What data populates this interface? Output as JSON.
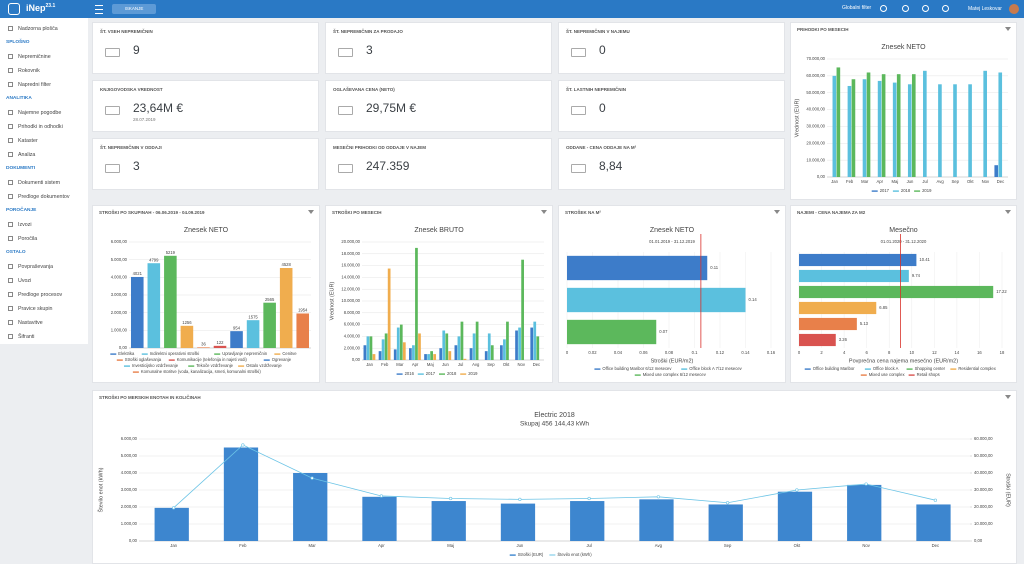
{
  "topbar": {
    "logo": "iNep",
    "version": "23.1",
    "search": "ISKANJE",
    "global_filter": "Globalni filter",
    "user": "Matej Leskovar"
  },
  "sidebar": {
    "home": "Nadzorna plošča",
    "sections": [
      {
        "title": "SPLOŠNO",
        "items": [
          "Nepremičnine",
          "Rokovnik",
          "Napredni filter"
        ]
      },
      {
        "title": "ANALITIKA",
        "items": [
          "Najemne pogodbe",
          "Prihodki in odhodki",
          "Kataster",
          "Analiza"
        ]
      },
      {
        "title": "DOKUMENTI",
        "items": [
          "Dokumenti sistem",
          "Predloge dokumentov"
        ]
      },
      {
        "title": "POROČANJE",
        "items": [
          "Izvozi",
          "Poročila"
        ]
      },
      {
        "title": "OSTALO",
        "items": [
          "Povpraševanja",
          "Uvozi",
          "Predloge procesov",
          "Pravice skupin",
          "Nastavitve",
          "Šifranti"
        ]
      }
    ]
  },
  "cards": [
    {
      "title": "ŠT. VSEH NEPREMIČNIN",
      "value": "9"
    },
    {
      "title": "ŠT. NEPREMIČNIN ZA PRODAJO",
      "value": "3"
    },
    {
      "title": "ŠT. NEPREMIČNIN V NAJEMU",
      "value": "0"
    },
    {
      "title": "KNJIGOVODSKA VREDNOST",
      "value": "23,64M €",
      "sub": "28.07.2019"
    },
    {
      "title": "OGLAŠEVANA CENA (NETO)",
      "value": "29,75M €"
    },
    {
      "title": "ŠT. LASTNIH NEPREMIČNIN",
      "value": "0"
    },
    {
      "title": "ŠT. NEPREMIČNIN V ODDAJI",
      "value": "3"
    },
    {
      "title": "MESEČNI PRIHODKI OD ODDAJE V NAJEM",
      "value": "247.359"
    },
    {
      "title": "ODDANE - CENA ODDAJE NA M²",
      "value": "8,84"
    }
  ],
  "charts": [
    {
      "panel_title": "PRIHODKI PO MESECIH",
      "chart": {
        "type": "bar",
        "title": "Znesek NETO",
        "y_label": "Vrednost (EUR)",
        "categories": [
          "Jan",
          "Feb",
          "Mar",
          "Apr",
          "Maj",
          "Jun",
          "Jul",
          "Avg",
          "Sep",
          "Okt",
          "Nov",
          "Dec"
        ],
        "series": [
          {
            "name": "2017",
            "color": "#3d7cc9",
            "values": [
              null,
              null,
              null,
              null,
              null,
              null,
              null,
              null,
              null,
              null,
              null,
              7000
            ]
          },
          {
            "name": "2018",
            "color": "#5bc0de",
            "values": [
              60000,
              54000,
              58000,
              57000,
              56000,
              55000,
              63000,
              55000,
              55000,
              55000,
              63000,
              62000
            ]
          },
          {
            "name": "2019",
            "color": "#5cb85c",
            "values": [
              65000,
              58000,
              62000,
              61000,
              61000,
              61000,
              null,
              null,
              null,
              null,
              null,
              null
            ]
          }
        ],
        "ylim": [
          0,
          70000
        ],
        "yticks": [
          {
            "value": 0,
            "label": "0,00"
          },
          {
            "value": 10000,
            "label": "10.000,00"
          },
          {
            "value": 20000,
            "label": "20.000,00"
          },
          {
            "value": 30000,
            "label": "30.000,00"
          },
          {
            "value": 40000,
            "label": "40.000,00"
          },
          {
            "value": 50000,
            "label": "50.000,00"
          },
          {
            "value": 60000,
            "label": "60.000,00"
          },
          {
            "value": 70000,
            "label": "70.000,00"
          }
        ],
        "grid": true
      }
    },
    {
      "panel_title": "STROŠKI PO SKUPINAH - 06.06.2019 - 04.09.2019",
      "chart": {
        "type": "bar",
        "title": "Znesek NETO",
        "categories": [
          "Elektrika",
          "Indirektni operativni stroški",
          "Upravljanje nepremičnin",
          "Cenitve",
          "Stroški oglaševanja",
          "Komunikacije (telefonija in najeti vodi)",
          "Ogrevanje",
          "Investicijsko vzdrževanje",
          "Tekoče vzdrževanje",
          "Ostalo vzdrževanje",
          "Komunalne storitve (voda, kanalizacija, smeti, komunalni stroški)"
        ],
        "values": [
          4021,
          4799,
          5219,
          1256,
          36,
          122,
          954,
          1575,
          2565,
          4528,
          1954
        ],
        "colors": [
          "#3d7cc9",
          "#5bc0de",
          "#5cb85c",
          "#f0ad4e",
          "#e8804a",
          "#d9534f",
          "#3d7cc9",
          "#5bc0de",
          "#5cb85c",
          "#f0ad4e",
          "#e8804a"
        ],
        "ylim": [
          0,
          6000
        ],
        "yticks": [
          {
            "value": 0,
            "label": "0,00"
          },
          {
            "value": 1000,
            "label": "1.000,00"
          },
          {
            "value": 2000,
            "label": "2.000,00"
          },
          {
            "value": 3000,
            "label": "3.000,00"
          },
          {
            "value": 4000,
            "label": "4.000,00"
          },
          {
            "value": 5000,
            "label": "5.000,00"
          },
          {
            "value": 6000,
            "label": "6.000,00"
          }
        ],
        "grid": true
      }
    },
    {
      "panel_title": "STROŠKI PO MESECIH",
      "chart": {
        "type": "bar",
        "title": "Znesek BRUTO",
        "y_label": "Vrednost (EUR)",
        "categories": [
          "Jan",
          "Feb",
          "Mar",
          "Apr",
          "Maj",
          "Jun",
          "Jul",
          "Avg",
          "Sep",
          "Okt",
          "Nov",
          "Dec"
        ],
        "series": [
          {
            "name": "2016",
            "color": "#3d7cc9",
            "values": [
              2500,
              1500,
              1800,
              2000,
              1000,
              2000,
              2500,
              2000,
              1500,
              2500,
              5000,
              5500
            ]
          },
          {
            "name": "2017",
            "color": "#5bc0de",
            "values": [
              4000,
              3500,
              5500,
              2500,
              1000,
              5000,
              4000,
              4500,
              4500,
              3500,
              5500,
              6500
            ]
          },
          {
            "name": "2018",
            "color": "#5cb85c",
            "values": [
              4000,
              4500,
              6000,
              19000,
              1500,
              4500,
              6500,
              6500,
              2500,
              6500,
              17000,
              4000
            ]
          },
          {
            "name": "2019",
            "color": "#f0ad4e",
            "values": [
              1000,
              15500,
              3000,
              4500,
              1000,
              1500,
              200,
              null,
              null,
              null,
              null,
              null
            ]
          }
        ],
        "ylim": [
          0,
          20000
        ],
        "yticks": [
          {
            "value": 0,
            "label": "0,00"
          },
          {
            "value": 2000,
            "label": "2.000,00"
          },
          {
            "value": 4000,
            "label": "4.000,00"
          },
          {
            "value": 6000,
            "label": "6.000,00"
          },
          {
            "value": 8000,
            "label": "8.000,00"
          },
          {
            "value": 10000,
            "label": "10.000,00"
          },
          {
            "value": 12000,
            "label": "12.000,00"
          },
          {
            "value": 14000,
            "label": "14.000,00"
          },
          {
            "value": 16000,
            "label": "16.000,00"
          },
          {
            "value": 18000,
            "label": "18.000,00"
          },
          {
            "value": 20000,
            "label": "20.000,00"
          }
        ],
        "grid": true
      }
    },
    {
      "panel_title": "STROŠEK NA M²",
      "chart": {
        "type": "hbar",
        "title": "Znesek NETO",
        "subtitle": "01.01.2019 - 31.12.2019",
        "x_label": "Stroški (EUR/m2)",
        "categories": [
          "Office building Maribor 6/12 mesecev",
          "Office block A 7/12 mesecev",
          "Mixed use complex 6/12 mesecev"
        ],
        "values": [
          0.11,
          0.14,
          0.07
        ],
        "colors": [
          "#3d7cc9",
          "#5bc0de",
          "#5cb85c"
        ],
        "reference_line": 0.105,
        "xlim": [
          0,
          0.16
        ],
        "xticks": [
          0,
          0.02,
          0.04,
          0.06,
          0.08,
          0.1,
          0.12,
          0.14,
          0.16
        ],
        "grid": true
      }
    },
    {
      "panel_title": "NAJEMI - CENA NAJEMA ZA M2",
      "chart": {
        "type": "hbar",
        "title": "Mesečno",
        "subtitle": "01.01.2020 - 31.12.2020",
        "x_label": "Povprečna cena najema mesečno (EUR/m2)",
        "categories": [
          "Office building Maribor",
          "Office block A",
          "Shopping center",
          "Residential complex",
          "Mixed use complex",
          "Retail shops"
        ],
        "values": [
          10.41,
          9.74,
          17.22,
          6.85,
          5.13,
          3.26
        ],
        "colors": [
          "#3d7cc9",
          "#5bc0de",
          "#5cb85c",
          "#f0ad4e",
          "#e8804a",
          "#d9534f"
        ],
        "reference_line": 9,
        "xlim": [
          0,
          18
        ],
        "xticks": [
          0,
          2,
          4,
          6,
          8,
          10,
          12,
          14,
          16,
          18
        ],
        "grid": true
      }
    },
    {
      "panel_title": "STROŠKI PO MERSKIH ENOTAH IN KOLIČINAH",
      "chart": {
        "type": "combo",
        "title": "Electric 2018",
        "subtitle": "Skupaj  456 144,43 kWh",
        "y_label": "Število enot (kWh)",
        "y2_label": "Stroški (EUR)",
        "categories": [
          "Jan",
          "Feb",
          "Mar",
          "Apr",
          "Maj",
          "Jun",
          "Jul",
          "Avg",
          "Sep",
          "Okt",
          "Nov",
          "Dec"
        ],
        "series": [
          {
            "name": "Stroški (EUR)",
            "color": "#3d86cf",
            "mark": "bar",
            "axis": "y2",
            "values": [
              19500,
              55000,
              40000,
              26000,
              23500,
              22000,
              23500,
              24500,
              21500,
              29000,
              33000,
              21500
            ]
          },
          {
            "name": "Število enot (kWh)",
            "color": "#6cc4e6",
            "mark": "line",
            "values": [
              1950,
              5650,
              3700,
              2650,
              2500,
              2450,
              2500,
              2600,
              2250,
              3000,
              3350,
              2400
            ]
          }
        ],
        "ylim": [
          0,
          6000
        ],
        "yticks": [
          {
            "value": 0,
            "label": "0,00"
          },
          {
            "value": 1000,
            "label": "1.000,00"
          },
          {
            "value": 2000,
            "label": "2.000,00"
          },
          {
            "value": 3000,
            "label": "3.000,00"
          },
          {
            "value": 4000,
            "label": "4.000,00"
          },
          {
            "value": 5000,
            "label": "5.000,00"
          },
          {
            "value": 6000,
            "label": "6.000,00"
          }
        ],
        "y2lim": [
          0,
          60000
        ],
        "y2ticks": [
          {
            "value": 0,
            "label": "0,00"
          },
          {
            "value": 10000,
            "label": "10.000,00"
          },
          {
            "value": 20000,
            "label": "20.000,00"
          },
          {
            "value": 30000,
            "label": "30.000,00"
          },
          {
            "value": 40000,
            "label": "40.000,00"
          },
          {
            "value": 50000,
            "label": "50.000,00"
          },
          {
            "value": 60000,
            "label": "60.000,00"
          }
        ],
        "grid": true
      }
    }
  ]
}
